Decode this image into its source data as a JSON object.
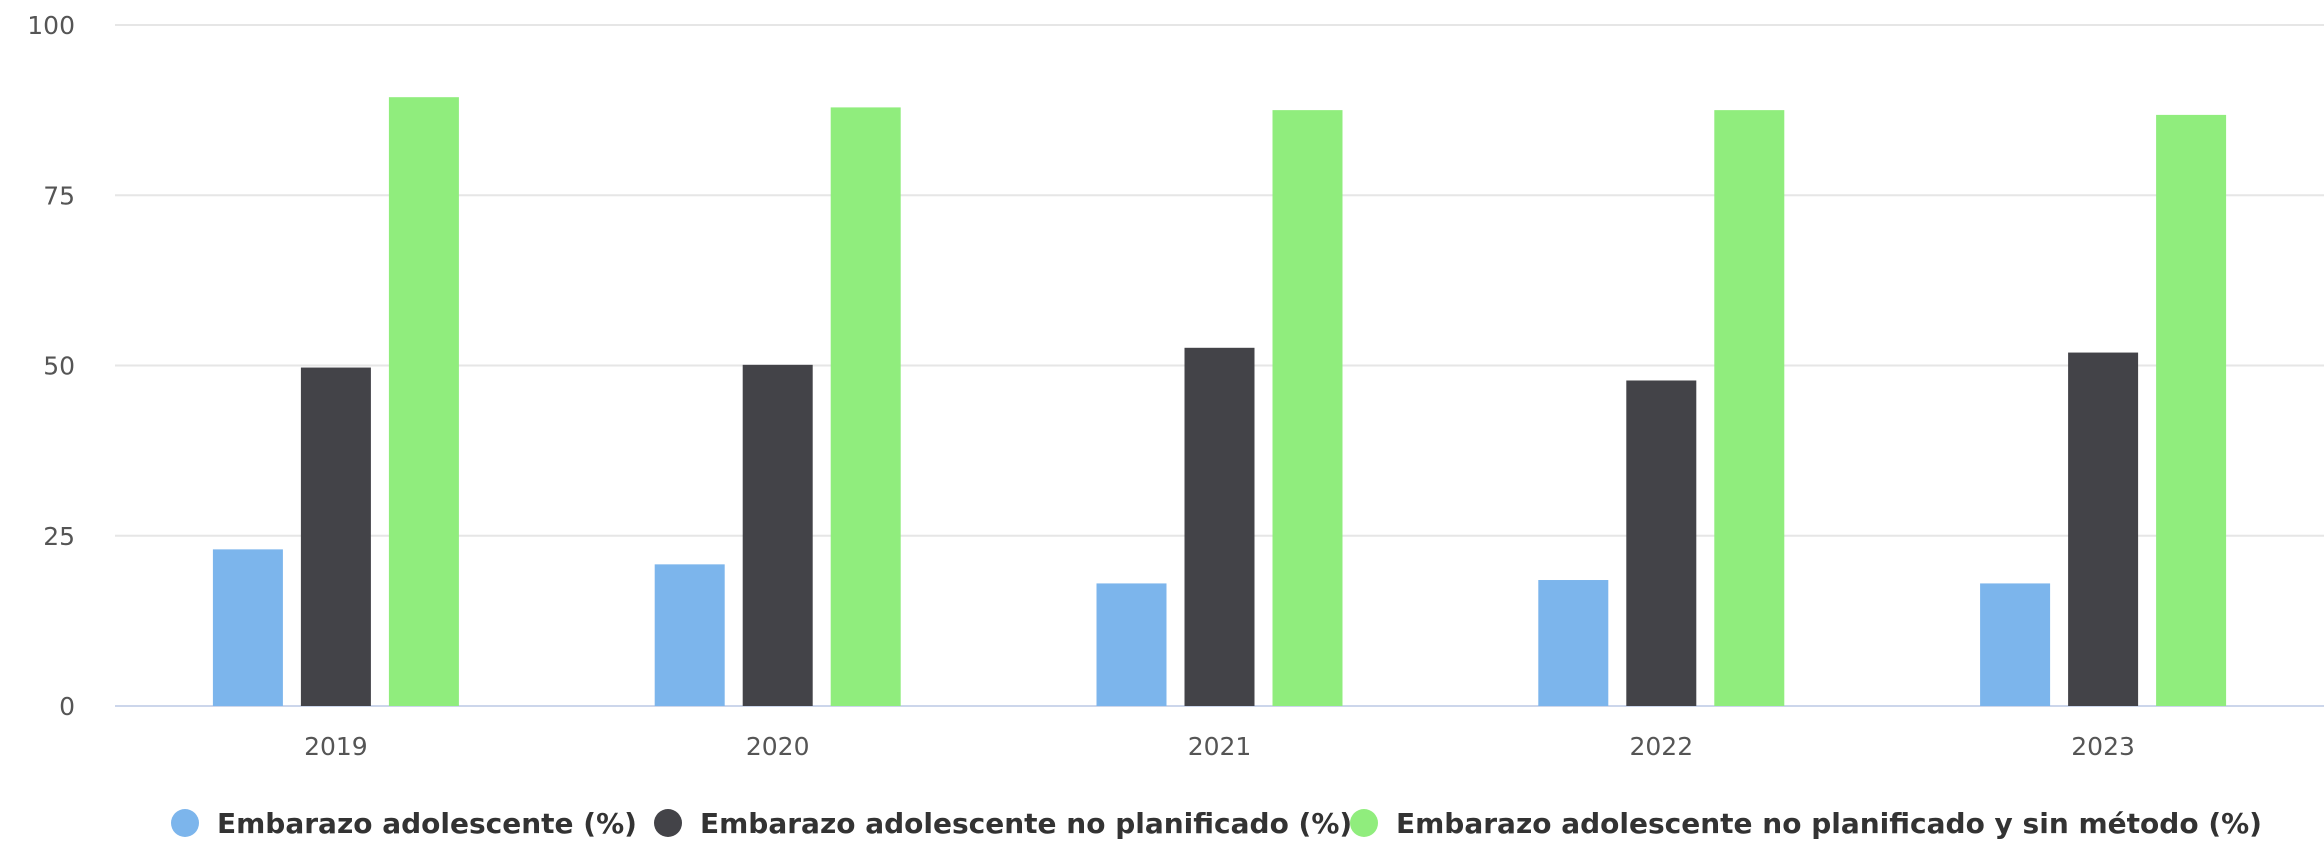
{
  "chart_data": {
    "type": "bar",
    "title": "",
    "xlabel": "",
    "ylabel": "",
    "ylim": [
      0,
      100
    ],
    "yticks": [
      0,
      25,
      50,
      75,
      100
    ],
    "grid": true,
    "legend_position": "bottom",
    "categories": [
      "2019",
      "2020",
      "2021",
      "2022",
      "2023"
    ],
    "series": [
      {
        "name": "Embarazo adolescente (%)",
        "color": "#7cb5ec",
        "values": [
          23,
          20.8,
          18,
          18.5,
          18
        ]
      },
      {
        "name": "Embarazo adolescente no planificado (%)",
        "color": "#434348",
        "values": [
          49.7,
          50.1,
          52.6,
          47.8,
          51.9
        ]
      },
      {
        "name": "Embarazo adolescente no planificado y sin método (%)",
        "color": "#90ed7d",
        "values": [
          89.4,
          87.9,
          87.5,
          87.5,
          86.8
        ]
      }
    ]
  }
}
